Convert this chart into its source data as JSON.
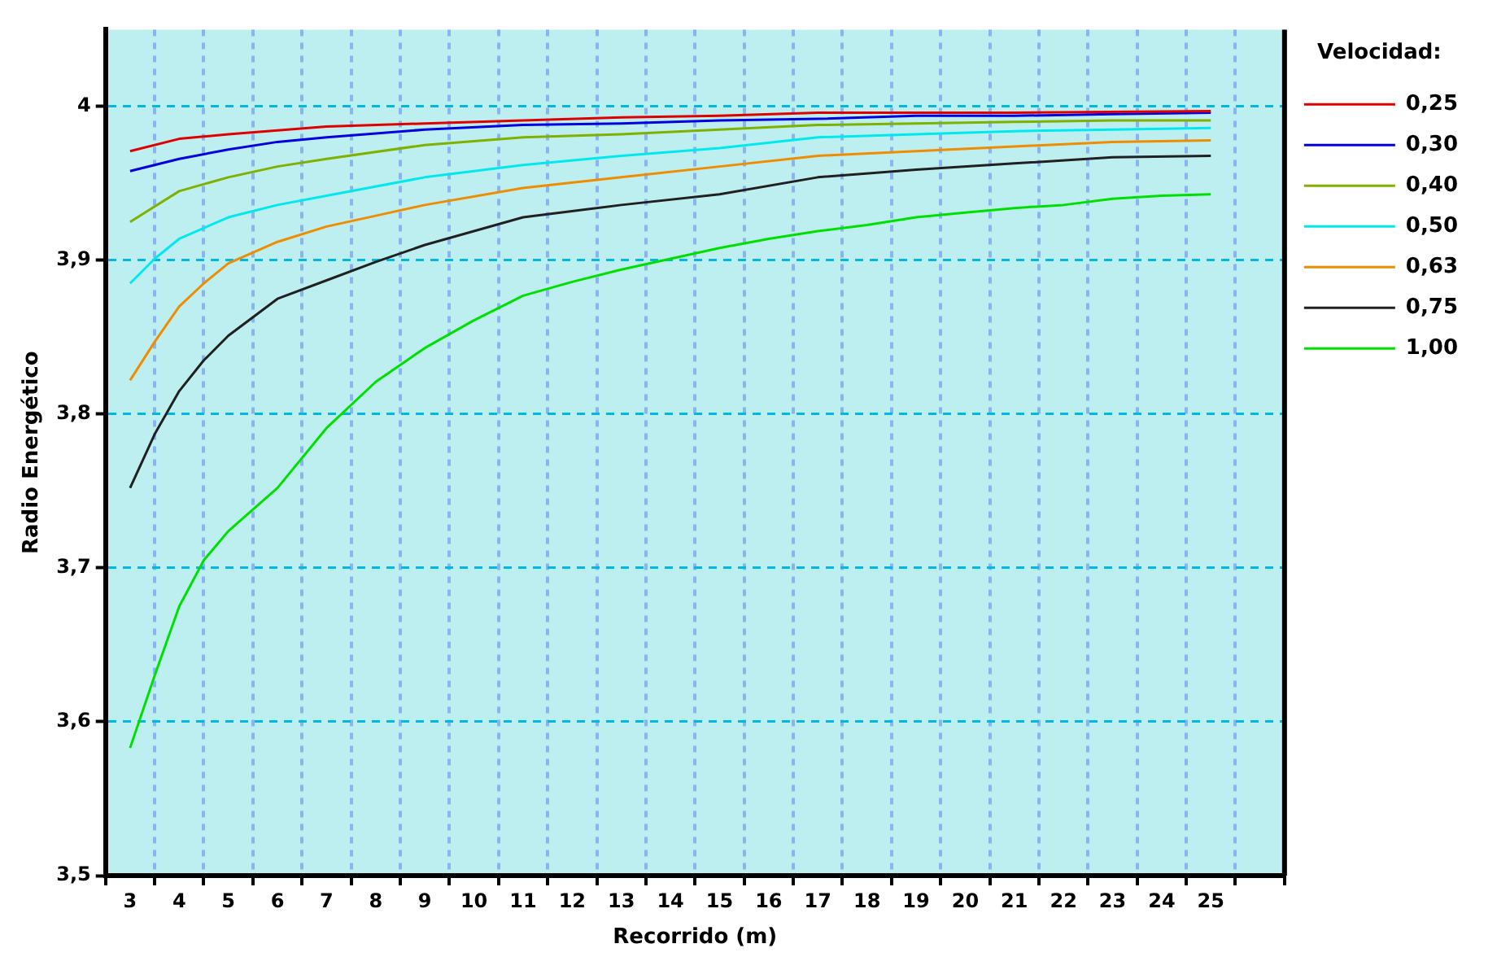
{
  "chart_data": {
    "type": "line",
    "xlabel": "Recorrido (m)",
    "ylabel": "Radio Energético",
    "legend_title": "Velocidad:",
    "legend": "right",
    "grid": true,
    "marker": "none",
    "line_style": "solid",
    "xlim": [
      2.5,
      26.5
    ],
    "xticks": [
      {
        "value": 2.5,
        "label": null
      },
      3,
      {
        "value": 3.5,
        "label": null
      },
      4,
      {
        "value": 4.5,
        "label": null
      },
      5,
      {
        "value": 5.5,
        "label": null
      },
      6,
      {
        "value": 6.5,
        "label": null
      },
      7,
      {
        "value": 7.5,
        "label": null
      },
      8,
      {
        "value": 8.5,
        "label": null
      },
      9,
      {
        "value": 9.5,
        "label": null
      },
      10,
      {
        "value": 10.5,
        "label": null
      },
      11,
      {
        "value": 11.5,
        "label": null
      },
      12,
      {
        "value": 12.5,
        "label": null
      },
      13,
      {
        "value": 13.5,
        "label": null
      },
      14,
      {
        "value": 14.5,
        "label": null
      },
      15,
      {
        "value": 15.5,
        "label": null
      },
      16,
      {
        "value": 16.5,
        "label": null
      },
      17,
      {
        "value": 17.5,
        "label": null
      },
      18,
      {
        "value": 18.5,
        "label": null
      },
      19,
      {
        "value": 19.5,
        "label": null
      },
      20,
      {
        "value": 20.5,
        "label": null
      },
      21,
      {
        "value": 21.5,
        "label": null
      },
      22,
      {
        "value": 22.5,
        "label": null
      },
      23,
      {
        "value": 23.5,
        "label": null
      },
      24,
      {
        "value": 24.5,
        "label": null
      },
      25,
      {
        "value": 25.5,
        "label": null
      },
      {
        "value": 26.5,
        "label": null
      }
    ],
    "ylim": [
      3.5,
      4.05
    ],
    "yticks": [
      {
        "value": 3.5,
        "label": "3,5"
      },
      {
        "value": 3.6,
        "label": "3,6"
      },
      {
        "value": 3.7,
        "label": "3,7"
      },
      {
        "value": 3.8,
        "label": "3,8"
      },
      {
        "value": 3.9,
        "label": "3,9"
      },
      4
    ],
    "series": [
      {
        "name": "0,25",
        "color": "#e00000",
        "x": [
          3,
          4,
          5,
          7,
          9,
          11,
          13,
          15,
          17,
          21,
          25
        ],
        "values": [
          3.971,
          3.979,
          3.982,
          3.987,
          3.989,
          3.991,
          3.993,
          3.994,
          3.996,
          3.996,
          3.997
        ]
      },
      {
        "name": "0,30",
        "color": "#0000e0",
        "x": [
          3,
          4,
          5,
          6,
          7,
          9,
          11,
          13,
          15,
          17,
          19,
          21,
          23,
          25
        ],
        "values": [
          3.958,
          3.966,
          3.972,
          3.977,
          3.98,
          3.985,
          3.988,
          3.989,
          3.991,
          3.992,
          3.994,
          3.994,
          3.995,
          3.996
        ]
      },
      {
        "name": "0,40",
        "color": "#80b000",
        "x": [
          3,
          4,
          5,
          6,
          7,
          9,
          11,
          13,
          15,
          17,
          19,
          21,
          23,
          25
        ],
        "values": [
          3.925,
          3.945,
          3.954,
          3.961,
          3.966,
          3.975,
          3.98,
          3.982,
          3.985,
          3.988,
          3.989,
          3.99,
          3.991,
          3.991
        ]
      },
      {
        "name": "0,50",
        "color": "#00e8f0",
        "x": [
          3,
          3.5,
          4,
          5,
          6,
          7,
          9,
          11,
          13,
          15,
          17,
          19,
          21,
          23,
          25
        ],
        "values": [
          3.885,
          3.901,
          3.914,
          3.928,
          3.936,
          3.942,
          3.954,
          3.962,
          3.968,
          3.973,
          3.98,
          3.982,
          3.984,
          3.985,
          3.986
        ]
      },
      {
        "name": "0,63",
        "color": "#f08c00",
        "x": [
          3,
          3.5,
          4,
          4.5,
          5,
          6,
          7,
          8,
          9,
          11,
          13,
          15,
          17,
          19,
          21,
          23,
          25
        ],
        "values": [
          3.822,
          3.847,
          3.87,
          3.885,
          3.898,
          3.912,
          3.922,
          3.929,
          3.936,
          3.947,
          3.954,
          3.961,
          3.968,
          3.971,
          3.974,
          3.977,
          3.978
        ]
      },
      {
        "name": "0,75",
        "color": "#202020",
        "x": [
          3,
          3.5,
          4,
          4.5,
          5,
          6,
          7,
          8,
          9,
          10,
          11,
          13,
          15,
          17,
          19,
          21,
          23,
          25
        ],
        "values": [
          3.752,
          3.787,
          3.815,
          3.835,
          3.851,
          3.875,
          3.887,
          3.899,
          3.91,
          3.919,
          3.928,
          3.936,
          3.943,
          3.954,
          3.959,
          3.963,
          3.967,
          3.968
        ]
      },
      {
        "name": "1,00",
        "color": "#00e000",
        "x": [
          3,
          3.5,
          4,
          4.5,
          5,
          6,
          7,
          8,
          9,
          10,
          11,
          12,
          13,
          14,
          15,
          16,
          17,
          18,
          19,
          20,
          21,
          22,
          23,
          24,
          25
        ],
        "values": [
          3.583,
          3.63,
          3.675,
          3.705,
          3.724,
          3.752,
          3.791,
          3.821,
          3.843,
          3.861,
          3.877,
          3.886,
          3.894,
          3.901,
          3.908,
          3.914,
          3.919,
          3.923,
          3.928,
          3.931,
          3.934,
          3.936,
          3.94,
          3.942,
          3.943
        ]
      }
    ]
  }
}
